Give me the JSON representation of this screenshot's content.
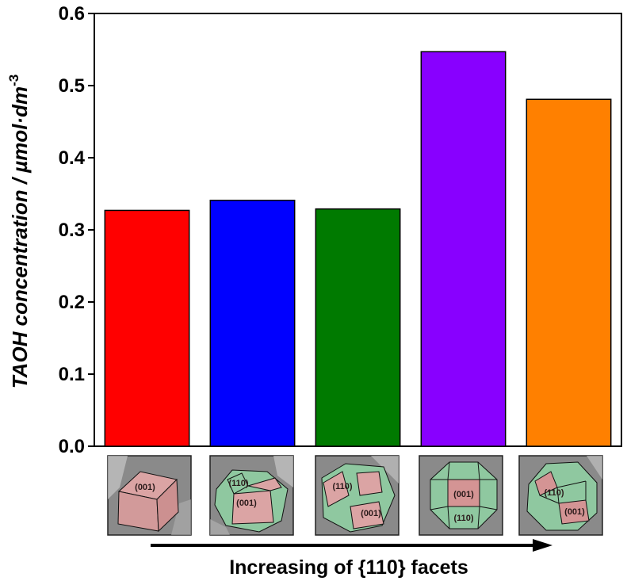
{
  "chart_data": {
    "type": "bar",
    "categories": [
      "",
      "",
      "",
      "",
      ""
    ],
    "values": [
      0.327,
      0.341,
      0.329,
      0.547,
      0.481
    ],
    "colors": [
      "#ff0000",
      "#0000ff",
      "#007a00",
      "#8800ff",
      "#ff8000"
    ],
    "ylabel_main": "TAOH concentration / µmol·dm",
    "ylabel_sup": "-3",
    "xlabel": "Increasing of {110} facets",
    "ylim": [
      0.0,
      0.6
    ],
    "yticks": [
      "0.0",
      "0.1",
      "0.2",
      "0.3",
      "0.4",
      "0.5",
      "0.6"
    ],
    "grid": false,
    "legend": "none"
  },
  "crystal_images": [
    {
      "labels": [
        "(001)"
      ]
    },
    {
      "labels": [
        "(110)",
        "(001)"
      ]
    },
    {
      "labels": [
        "(110)",
        "(001)"
      ]
    },
    {
      "labels": [
        "(001)",
        "(110)"
      ]
    },
    {
      "labels": [
        "(110)",
        "(001)"
      ]
    }
  ],
  "colors": {
    "facet_001": "#d9a0a0",
    "facet_110": "#8fc8a0",
    "sem_background": "#8a8a8a"
  },
  "icons": {
    "x_arrow": "right-arrow-icon"
  }
}
